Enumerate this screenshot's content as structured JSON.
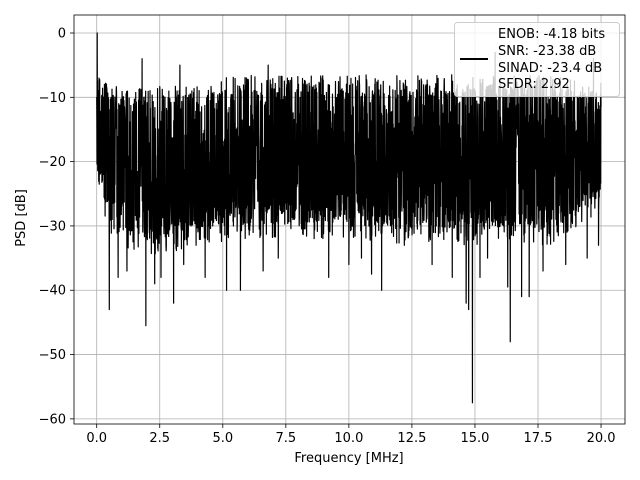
{
  "chart_data": {
    "type": "line",
    "title": "",
    "xlabel": "Frequency [MHz]",
    "ylabel": "PSD [dB]",
    "xlim": [
      -0.9,
      20.95
    ],
    "ylim": [
      -60.8,
      2.8
    ],
    "xticks": [
      0.0,
      2.5,
      5.0,
      7.5,
      10.0,
      12.5,
      15.0,
      17.5,
      20.0
    ],
    "xtick_labels": [
      "0.0",
      "2.5",
      "5.0",
      "7.5",
      "10.0",
      "12.5",
      "15.0",
      "17.5",
      "20.0"
    ],
    "yticks": [
      0,
      -10,
      -20,
      -30,
      -40,
      -50,
      -60
    ],
    "ytick_labels": [
      "0",
      "−10",
      "−20",
      "−30",
      "−40",
      "−50",
      "−60"
    ],
    "grid": true,
    "legend_position": "upper-right",
    "series": [
      {
        "name": "",
        "color": "#000000",
        "x_range": [
          0.0,
          20.0
        ],
        "profile": [
          [
            0.0,
            -10,
            -24,
            -8
          ],
          [
            0.3,
            -10,
            -30,
            -9
          ],
          [
            1.0,
            -12,
            -33,
            -10
          ],
          [
            2.0,
            -11,
            -35,
            -10
          ],
          [
            4.0,
            -11,
            -33,
            -9
          ],
          [
            6.0,
            -10,
            -32,
            -8
          ],
          [
            8.0,
            -10,
            -32,
            -8
          ],
          [
            10.0,
            -10,
            -32,
            -8
          ],
          [
            12.0,
            -10,
            -33,
            -8
          ],
          [
            14.0,
            -10,
            -33,
            -8
          ],
          [
            16.0,
            -10,
            -33,
            -8
          ],
          [
            18.0,
            -10,
            -33,
            -8
          ],
          [
            20.0,
            -11,
            -28,
            -9
          ]
        ],
        "features": [
          [
            0.02,
            0
          ],
          [
            0.5,
            -43
          ],
          [
            0.85,
            -38
          ],
          [
            1.2,
            -37
          ],
          [
            1.95,
            -45.5
          ],
          [
            2.3,
            -39
          ],
          [
            2.55,
            -38
          ],
          [
            3.05,
            -42
          ],
          [
            3.45,
            -36
          ],
          [
            4.3,
            -38
          ],
          [
            5.15,
            -40
          ],
          [
            5.7,
            -40
          ],
          [
            6.6,
            -37
          ],
          [
            7.2,
            -35
          ],
          [
            9.2,
            -38
          ],
          [
            10.0,
            -36
          ],
          [
            10.5,
            -35
          ],
          [
            10.9,
            -37.5
          ],
          [
            11.3,
            -40
          ],
          [
            12.2,
            -33
          ],
          [
            13.3,
            -36
          ],
          [
            14.1,
            -38
          ],
          [
            14.65,
            -42
          ],
          [
            14.75,
            -43
          ],
          [
            14.9,
            -57.5
          ],
          [
            15.2,
            -38
          ],
          [
            15.5,
            -35
          ],
          [
            16.3,
            -39.5
          ],
          [
            16.4,
            -48
          ],
          [
            16.85,
            -41
          ],
          [
            17.15,
            -41
          ],
          [
            17.7,
            -37
          ],
          [
            18.6,
            -36
          ],
          [
            19.45,
            -35
          ],
          [
            19.9,
            -33
          ],
          [
            1.8,
            -4
          ],
          [
            3.3,
            -5
          ],
          [
            6.8,
            -5
          ],
          [
            15.8,
            -3
          ],
          [
            19.7,
            -4
          ]
        ]
      }
    ],
    "legend": {
      "lines": [
        "ENOB: -4.18 bits",
        "SNR: -23.38 dB",
        "SINAD: -23.4 dB",
        "SFDR: 2.92"
      ]
    }
  }
}
